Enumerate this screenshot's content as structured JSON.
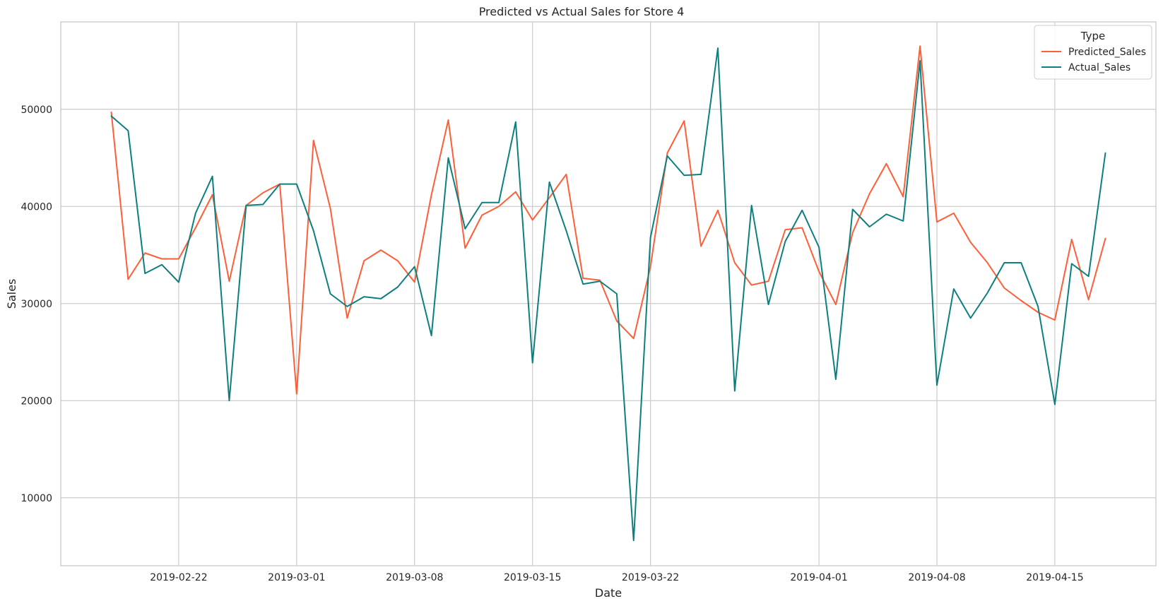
{
  "chart_data": {
    "type": "line",
    "title": "Predicted vs Actual Sales for Store 4",
    "xlabel": "Date",
    "ylabel": "Sales",
    "x_start": "2019-02-18",
    "x_end": "2019-04-19",
    "xlim": [
      "2019-02-15",
      "2019-04-21"
    ],
    "ylim": [
      3000,
      59000
    ],
    "x_ticks": [
      "2019-02-22",
      "2019-03-01",
      "2019-03-08",
      "2019-03-15",
      "2019-03-22",
      "2019-04-01",
      "2019-04-08",
      "2019-04-15"
    ],
    "y_ticks": [
      10000,
      20000,
      30000,
      40000,
      50000
    ],
    "grid": true,
    "legend": {
      "title": "Type",
      "placement": "top-right"
    },
    "series": [
      {
        "name": "Predicted_Sales",
        "color": "#fe5f38",
        "values": [
          49700,
          32500,
          35200,
          34600,
          34600,
          37800,
          41200,
          32300,
          40100,
          41400,
          42300,
          20700,
          46800,
          39800,
          28500,
          34400,
          35500,
          34400,
          32200,
          41200,
          48900,
          35700,
          39100,
          40000,
          41500,
          38600,
          40900,
          43300,
          32600,
          32400,
          28200,
          26400,
          33800,
          45500,
          48800,
          35900,
          39600,
          34200,
          31900,
          32300,
          37600,
          37800,
          33300,
          29900,
          37300,
          41300,
          44400,
          41000,
          56500,
          38400,
          39300,
          36300,
          34200,
          31600,
          30300,
          29100,
          28300,
          36600,
          30400,
          36700
        ]
      },
      {
        "name": "Actual_Sales",
        "color": "#0e7f7f",
        "values": [
          49300,
          47800,
          33100,
          34000,
          32200,
          39300,
          43100,
          20000,
          40100,
          40200,
          42300,
          42300,
          37500,
          31000,
          29700,
          30700,
          30500,
          31700,
          33800,
          26700,
          45000,
          37700,
          40400,
          40400,
          48700,
          23900,
          42500,
          37500,
          32000,
          32300,
          31000,
          5600,
          36800,
          45200,
          43200,
          43300,
          56300,
          21000,
          40100,
          29900,
          36400,
          39600,
          35800,
          22200,
          39700,
          37900,
          39200,
          38500,
          55000,
          21600,
          31500,
          28500,
          31100,
          34200,
          34200,
          29700,
          19600,
          34100,
          32800,
          45500
        ]
      }
    ]
  }
}
